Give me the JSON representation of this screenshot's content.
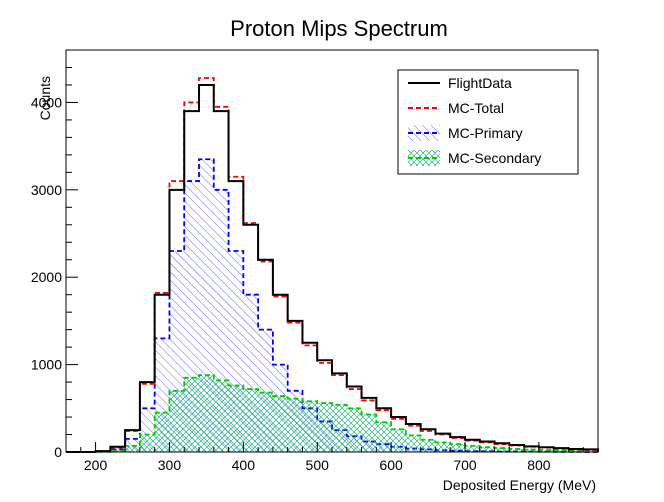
{
  "chart_data": {
    "type": "histogram",
    "title": "Proton Mips Spectrum",
    "xlabel": "Deposited Energy (MeV)",
    "ylabel": "Counts",
    "xlim": [
      160,
      880
    ],
    "ylim": [
      0,
      4600
    ],
    "x_ticks": [
      200,
      300,
      400,
      500,
      600,
      700,
      800
    ],
    "y_ticks": [
      0,
      1000,
      2000,
      3000,
      4000
    ],
    "grid": false,
    "legend_position": "top-right",
    "bin_centers": [
      170,
      190,
      210,
      230,
      250,
      270,
      290,
      310,
      330,
      350,
      370,
      390,
      410,
      430,
      450,
      470,
      490,
      510,
      530,
      550,
      570,
      590,
      610,
      630,
      650,
      670,
      690,
      710,
      730,
      750,
      770,
      790,
      810,
      830,
      850,
      870
    ],
    "series": [
      {
        "name": "FlightData",
        "color": "#000000",
        "style": "solid",
        "fill": "none",
        "values": [
          0,
          0,
          10,
          60,
          250,
          800,
          1800,
          3000,
          3900,
          4200,
          3900,
          3100,
          2600,
          2200,
          1800,
          1500,
          1250,
          1050,
          900,
          750,
          620,
          500,
          400,
          320,
          260,
          210,
          170,
          140,
          120,
          100,
          80,
          65,
          55,
          45,
          35,
          30
        ]
      },
      {
        "name": "MC-Total",
        "color": "#ff0000",
        "style": "dashed",
        "fill": "none",
        "values": [
          0,
          0,
          10,
          50,
          240,
          780,
          1820,
          3100,
          4000,
          4280,
          3950,
          3150,
          2620,
          2180,
          1780,
          1480,
          1220,
          1020,
          880,
          720,
          590,
          480,
          380,
          300,
          240,
          200,
          160,
          130,
          110,
          90,
          75,
          60,
          50,
          40,
          30,
          25
        ]
      },
      {
        "name": "MC-Primary",
        "color": "#0000ff",
        "style": "dashed",
        "fill": "hatch",
        "values": [
          0,
          0,
          5,
          30,
          150,
          500,
          1300,
          2300,
          3100,
          3350,
          3000,
          2300,
          1800,
          1400,
          1000,
          700,
          500,
          350,
          250,
          180,
          120,
          90,
          60,
          40,
          30,
          20,
          15,
          10,
          8,
          6,
          5,
          4,
          3,
          2,
          2,
          1
        ]
      },
      {
        "name": "MC-Secondary",
        "color": "#00cc00",
        "style": "dashed",
        "fill": "crosshatch",
        "values": [
          0,
          0,
          2,
          15,
          70,
          200,
          450,
          700,
          850,
          880,
          820,
          760,
          720,
          680,
          640,
          610,
          580,
          560,
          540,
          500,
          430,
          340,
          260,
          190,
          140,
          110,
          90,
          70,
          55,
          45,
          35,
          28,
          22,
          18,
          14,
          10
        ]
      }
    ]
  }
}
